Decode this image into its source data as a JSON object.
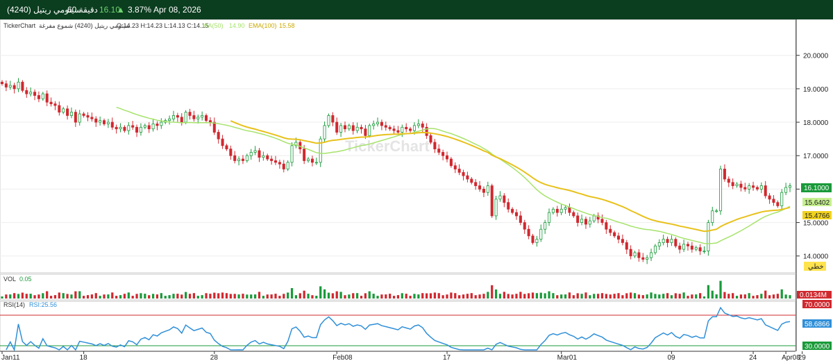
{
  "header": {
    "symbol": "سينومي ريتيل (4240)",
    "interval": "60 دقيقة",
    "price": "16.10",
    "change_pct": "3.87%",
    "date": "Apr 08, 2026"
  },
  "legend": {
    "brand": "TickerChart",
    "symbol_label": "سينومي ريتيل (4240) شموع مفرغة",
    "ohlc": "O:14.23  H:14.23  L:14.13  C:14.15",
    "ma_label": "MA(50)",
    "ma_value": "14.90",
    "ema_label": "EMA(100)",
    "ema_value": "15.58"
  },
  "watermark": "TickerChart",
  "colors": {
    "header_bg": "#0b3d1f",
    "up": "#1a9a3a",
    "down": "#d0282f",
    "ma": "#a6e36b",
    "ema": "#e8c11a",
    "vol": "#1a9a3a",
    "rsi": "#2f8fd8",
    "rsi_upper": "#d0282f",
    "rsi_lower": "#1a9a3a"
  },
  "chart_data": {
    "type": "candlestick",
    "y_ticks": [
      "20.0000",
      "19.0000",
      "18.0000",
      "17.0000",
      "16.0000",
      "15.0000",
      "14.0000"
    ],
    "ylim": [
      13.6,
      20.7
    ],
    "x_ticks": [
      "Jan11",
      "18",
      "28",
      "Feb08",
      "17",
      "Mar01",
      "09",
      "24",
      "29",
      "Apr08"
    ],
    "last_price_tag": "16.1000",
    "ma_tag": "15.6402",
    "ema_tag": "15.4766",
    "scale_button": "خطي",
    "volume": {
      "label": "VOL",
      "value": "0.05",
      "tag": "0.0134M"
    },
    "rsi": {
      "label": "RSI(14)",
      "value_label": "RSI:25.56",
      "upper": "70.0000",
      "lower": "30.0000",
      "current": "58.6866"
    },
    "closes": [
      19.15,
      19.05,
      19.1,
      19.0,
      19.2,
      18.95,
      18.85,
      18.9,
      18.8,
      18.7,
      18.85,
      18.6,
      18.55,
      18.5,
      18.3,
      18.4,
      18.2,
      18.3,
      18.0,
      18.25,
      18.2,
      18.15,
      18.1,
      18.0,
      18.05,
      17.95,
      18.0,
      17.85,
      17.8,
      17.85,
      17.75,
      17.9,
      17.85,
      17.7,
      17.85,
      17.9,
      17.8,
      17.95,
      17.9,
      18.0,
      18.05,
      18.1,
      18.2,
      18.15,
      18.0,
      18.3,
      18.2,
      18.1,
      18.15,
      18.2,
      18.05,
      18.0,
      17.7,
      17.5,
      17.3,
      17.2,
      17.0,
      16.85,
      16.9,
      16.85,
      17.0,
      17.1,
      17.15,
      16.95,
      17.0,
      16.9,
      16.85,
      16.8,
      16.75,
      16.6,
      16.8,
      17.3,
      17.4,
      17.2,
      16.85,
      16.9,
      16.8,
      16.8,
      17.5,
      17.9,
      18.2,
      18.0,
      17.7,
      17.9,
      17.8,
      17.9,
      17.75,
      17.85,
      17.8,
      17.6,
      17.9,
      17.95,
      18.0,
      17.9,
      17.85,
      17.8,
      17.75,
      17.7,
      17.85,
      17.8,
      17.75,
      17.9,
      17.95,
      17.85,
      17.6,
      17.4,
      17.2,
      17.1,
      17.0,
      16.9,
      16.7,
      16.6,
      16.5,
      16.4,
      16.3,
      16.2,
      16.1,
      16.0,
      15.9,
      16.1,
      15.2,
      15.7,
      15.8,
      15.6,
      15.4,
      15.3,
      15.2,
      15.0,
      14.8,
      14.6,
      14.4,
      14.5,
      14.8,
      15.0,
      15.3,
      15.4,
      15.3,
      15.4,
      15.45,
      15.3,
      15.2,
      15.0,
      15.1,
      14.95,
      15.05,
      15.2,
      15.1,
      15.0,
      14.8,
      14.7,
      14.6,
      14.5,
      14.4,
      14.2,
      14.0,
      14.1,
      13.95,
      13.9,
      13.95,
      14.1,
      14.3,
      14.4,
      14.5,
      14.4,
      14.5,
      14.3,
      14.2,
      14.35,
      14.3,
      14.2,
      14.25,
      14.15,
      14.15,
      15.0,
      15.35,
      15.35,
      16.6,
      16.3,
      16.2,
      16.1,
      16.15,
      16.05,
      16.0,
      16.1,
      16.05,
      16.0,
      16.1,
      15.8,
      15.7,
      15.6,
      15.5,
      15.9,
      16.05,
      16.1
    ],
    "ma50_from": 28,
    "ema100_from": 56
  }
}
